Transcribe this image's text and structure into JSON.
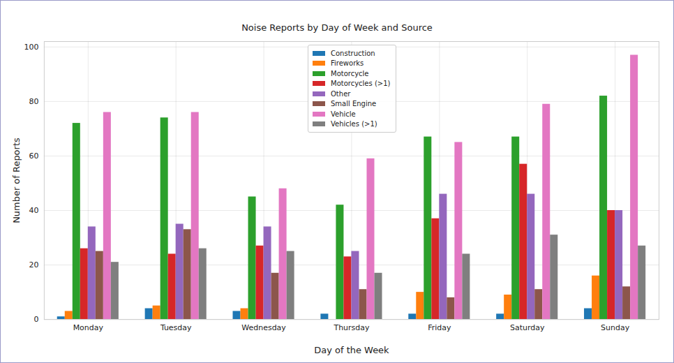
{
  "chart_data": {
    "type": "bar",
    "title": "Noise Reports by Day of Week and Source",
    "x_label": "Day of the Week",
    "y_label": "Number of Reports",
    "categories": [
      "Monday",
      "Tuesday",
      "Wednesday",
      "Thursday",
      "Friday",
      "Saturday",
      "Sunday"
    ],
    "series": [
      {
        "name": "Construction",
        "color": "#1f77b4",
        "values": [
          1,
          4,
          3,
          2,
          2,
          2,
          4
        ]
      },
      {
        "name": "Fireworks",
        "color": "#ff7f0e",
        "values": [
          3,
          5,
          4,
          null,
          10,
          9,
          16
        ]
      },
      {
        "name": "Motorcycle",
        "color": "#2ca02c",
        "values": [
          72,
          74,
          45,
          42,
          67,
          67,
          82
        ]
      },
      {
        "name": "Motorcycles (>1)",
        "color": "#d62728",
        "values": [
          26,
          24,
          27,
          23,
          37,
          57,
          40
        ]
      },
      {
        "name": "Other",
        "color": "#9467bd",
        "values": [
          34,
          35,
          34,
          25,
          46,
          46,
          40
        ]
      },
      {
        "name": "Small Engine",
        "color": "#8c564b",
        "values": [
          25,
          33,
          17,
          11,
          8,
          11,
          12
        ]
      },
      {
        "name": "Vehicle",
        "color": "#e377c2",
        "values": [
          76,
          76,
          48,
          59,
          65,
          79,
          97
        ]
      },
      {
        "name": "Vehicles (>1)",
        "color": "#7f7f7f",
        "values": [
          21,
          26,
          25,
          17,
          24,
          31,
          27
        ]
      }
    ],
    "ylim": [
      0,
      102
    ],
    "yticks": [
      0,
      20,
      40,
      60,
      80,
      100
    ],
    "grid": true,
    "legend": "upper center"
  }
}
